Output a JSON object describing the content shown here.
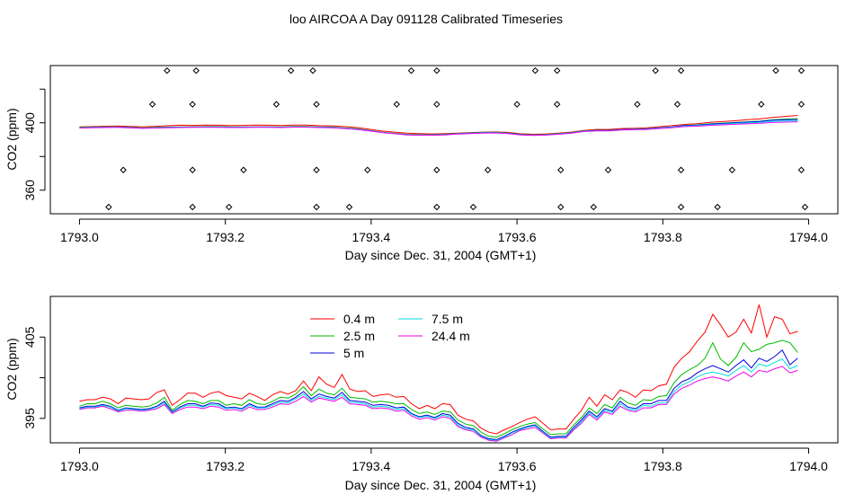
{
  "figure": {
    "title": "loo AIRCOA A  Day 091128  Calibrated Timeseries"
  },
  "chart_data": [
    {
      "type": "line",
      "xlabel": "Day since Dec. 31, 2004 (GMT+1)",
      "ylabel": "CO2 (ppm)",
      "xlim": [
        1792.96,
        1794.04
      ],
      "ylim": [
        346,
        434
      ],
      "xticks": [
        1793.0,
        1793.2,
        1793.4,
        1793.6,
        1793.8,
        1794.0
      ],
      "xtick_labels": [
        "1793.0",
        "1793.2",
        "1793.4",
        "1793.6",
        "1793.8",
        "1794.0"
      ],
      "yticks": [
        360,
        380,
        400,
        420
      ],
      "ytick_labels": [
        "360",
        "",
        "400",
        ""
      ],
      "colors": [
        "#ff0000",
        "#00cc00",
        "#0000ff",
        "#00e5e5",
        "#ff00ff"
      ],
      "series": [
        {
          "values": [
            397.6,
            397.8,
            398.0,
            398.1,
            397.9,
            397.6,
            397.9,
            398.3,
            398.6,
            398.5,
            398.7,
            398.6,
            398.4,
            398.5,
            398.7,
            398.6,
            398.4,
            398.7,
            398.7,
            398.3,
            398.2,
            397.8,
            397.2,
            396.2,
            395.1,
            394.5,
            393.9,
            393.6,
            393.4,
            393.6,
            393.9,
            394.2,
            394.5,
            394.6,
            394.3,
            393.5,
            393.2,
            393.4,
            393.9,
            394.5,
            395.5,
            396.1,
            396.1,
            396.6,
            396.7,
            397.0,
            397.7,
            398.3,
            399.0,
            399.5,
            400.3,
            400.7,
            401.2,
            401.9,
            402.3,
            403.2,
            403.8,
            404.4
          ]
        },
        {
          "values": [
            397.3,
            397.5,
            397.6,
            397.7,
            397.4,
            397.1,
            397.3,
            397.5,
            397.6,
            397.7,
            397.8,
            397.8,
            397.6,
            397.6,
            397.6,
            397.7,
            397.6,
            397.9,
            397.9,
            397.6,
            397.5,
            397.0,
            396.5,
            395.5,
            394.5,
            393.8,
            393.2,
            393.0,
            393.0,
            393.2,
            393.7,
            394.0,
            394.3,
            394.4,
            394.0,
            393.2,
            392.9,
            393.1,
            393.6,
            394.2,
            395.2,
            395.6,
            395.6,
            396.1,
            396.3,
            396.5,
            397.1,
            397.6,
            398.5,
            398.8,
            399.4,
            399.8,
            400.2,
            400.6,
            401.0,
            401.8,
            402.2,
            402.5
          ]
        },
        {
          "values": [
            397.1,
            397.3,
            397.4,
            397.5,
            397.2,
            396.9,
            397.1,
            397.3,
            397.4,
            397.5,
            397.5,
            397.5,
            397.4,
            397.4,
            397.5,
            397.5,
            397.4,
            397.6,
            397.6,
            397.4,
            397.3,
            396.8,
            396.3,
            395.4,
            394.3,
            393.6,
            393.0,
            392.8,
            392.8,
            393.0,
            393.5,
            393.8,
            394.1,
            394.2,
            393.8,
            393.0,
            392.7,
            392.9,
            393.4,
            394.0,
            395.0,
            395.5,
            395.5,
            396.0,
            396.2,
            396.4,
            397.0,
            397.5,
            398.3,
            398.6,
            399.2,
            399.6,
            400.0,
            400.4,
            400.8,
            401.5,
            401.8,
            402.0
          ]
        },
        {
          "values": [
            397.0,
            397.2,
            397.3,
            397.4,
            397.1,
            396.8,
            397.0,
            397.2,
            397.3,
            397.4,
            397.4,
            397.4,
            397.3,
            397.3,
            397.4,
            397.4,
            397.3,
            397.5,
            397.5,
            397.3,
            397.2,
            396.7,
            396.2,
            395.3,
            394.3,
            393.6,
            392.9,
            392.7,
            392.7,
            392.9,
            393.4,
            393.7,
            394.0,
            394.1,
            393.7,
            392.9,
            392.6,
            392.8,
            393.3,
            393.9,
            394.9,
            395.3,
            395.3,
            395.8,
            396.0,
            396.2,
            396.8,
            397.3,
            398.0,
            398.3,
            398.8,
            399.2,
            399.6,
            399.9,
            400.2,
            400.8,
            401.0,
            401.2
          ]
        },
        {
          "values": [
            396.9,
            397.1,
            397.2,
            397.3,
            397.0,
            396.7,
            396.9,
            397.1,
            397.2,
            397.3,
            397.3,
            397.3,
            397.2,
            397.2,
            397.3,
            397.3,
            397.2,
            397.4,
            397.4,
            397.2,
            397.1,
            396.6,
            396.1,
            395.2,
            394.2,
            393.5,
            392.8,
            392.6,
            392.6,
            392.8,
            393.3,
            393.6,
            393.9,
            394.0,
            393.6,
            392.8,
            392.5,
            392.7,
            393.2,
            393.8,
            394.8,
            395.2,
            395.2,
            395.7,
            395.9,
            396.1,
            396.6,
            397.1,
            397.8,
            398.0,
            398.5,
            398.8,
            399.1,
            399.4,
            399.7,
            400.2,
            400.4,
            400.6
          ]
        }
      ],
      "points": [
        {
          "x": 1793.12,
          "y": 431
        },
        {
          "x": 1793.16,
          "y": 431
        },
        {
          "x": 1793.29,
          "y": 431
        },
        {
          "x": 1793.32,
          "y": 431
        },
        {
          "x": 1793.455,
          "y": 431
        },
        {
          "x": 1793.49,
          "y": 431
        },
        {
          "x": 1793.625,
          "y": 431
        },
        {
          "x": 1793.655,
          "y": 431
        },
        {
          "x": 1793.79,
          "y": 431
        },
        {
          "x": 1793.825,
          "y": 431
        },
        {
          "x": 1793.955,
          "y": 431
        },
        {
          "x": 1793.99,
          "y": 431
        },
        {
          "x": 1793.1,
          "y": 411
        },
        {
          "x": 1793.155,
          "y": 411
        },
        {
          "x": 1793.27,
          "y": 411
        },
        {
          "x": 1793.325,
          "y": 411
        },
        {
          "x": 1793.435,
          "y": 411
        },
        {
          "x": 1793.49,
          "y": 411
        },
        {
          "x": 1793.6,
          "y": 411
        },
        {
          "x": 1793.655,
          "y": 411
        },
        {
          "x": 1793.765,
          "y": 411
        },
        {
          "x": 1793.82,
          "y": 411
        },
        {
          "x": 1793.935,
          "y": 411
        },
        {
          "x": 1793.99,
          "y": 411
        },
        {
          "x": 1793.06,
          "y": 372
        },
        {
          "x": 1793.155,
          "y": 372
        },
        {
          "x": 1793.225,
          "y": 372
        },
        {
          "x": 1793.325,
          "y": 372
        },
        {
          "x": 1793.395,
          "y": 372
        },
        {
          "x": 1793.49,
          "y": 372
        },
        {
          "x": 1793.56,
          "y": 372
        },
        {
          "x": 1793.66,
          "y": 372
        },
        {
          "x": 1793.725,
          "y": 372
        },
        {
          "x": 1793.825,
          "y": 372
        },
        {
          "x": 1793.895,
          "y": 372
        },
        {
          "x": 1793.99,
          "y": 372
        },
        {
          "x": 1793.04,
          "y": 350
        },
        {
          "x": 1793.155,
          "y": 350
        },
        {
          "x": 1793.205,
          "y": 350
        },
        {
          "x": 1793.325,
          "y": 350
        },
        {
          "x": 1793.37,
          "y": 350
        },
        {
          "x": 1793.49,
          "y": 350
        },
        {
          "x": 1793.54,
          "y": 350
        },
        {
          "x": 1793.66,
          "y": 350
        },
        {
          "x": 1793.705,
          "y": 350
        },
        {
          "x": 1793.825,
          "y": 350
        },
        {
          "x": 1793.875,
          "y": 350
        },
        {
          "x": 1793.995,
          "y": 350
        }
      ]
    },
    {
      "type": "line",
      "xlabel": "Day since Dec. 31, 2004 (GMT+1)",
      "ylabel": "CO2 (ppm)",
      "xlim": [
        1792.96,
        1794.04
      ],
      "ylim": [
        392.0,
        410.0
      ],
      "xticks": [
        1793.0,
        1793.2,
        1793.4,
        1793.6,
        1793.8,
        1794.0
      ],
      "xtick_labels": [
        "1793.0",
        "1793.2",
        "1793.4",
        "1793.6",
        "1793.8",
        "1794.0"
      ],
      "yticks": [
        395,
        400,
        405
      ],
      "ytick_labels": [
        "395",
        "",
        "405"
      ],
      "legend": {
        "position": "top-center"
      },
      "series": [
        {
          "name": "0.4 m",
          "color": "#ff0000",
          "values": [
            397.1,
            397.3,
            397.3,
            397.6,
            397.4,
            396.8,
            397.5,
            397.4,
            397.3,
            397.4,
            398.2,
            398.5,
            396.6,
            397.3,
            398.1,
            398.1,
            397.6,
            398.1,
            398.3,
            397.8,
            397.6,
            397.4,
            398.1,
            397.7,
            397.2,
            397.9,
            398.3,
            398.0,
            398.4,
            399.6,
            398.4,
            400.1,
            399.2,
            398.8,
            400.4,
            398.6,
            398.3,
            398.4,
            397.7,
            397.9,
            398.0,
            397.6,
            397.7,
            396.8,
            396.2,
            396.6,
            396.2,
            396.8,
            396.7,
            395.4,
            394.9,
            394.7,
            393.8,
            393.3,
            393.1,
            393.6,
            394.0,
            394.5,
            394.9,
            395.2,
            394.4,
            393.6,
            393.7,
            393.7,
            394.9,
            396.0,
            397.6,
            396.5,
            397.9,
            397.3,
            398.5,
            398.2,
            397.6,
            398.5,
            398.4,
            399.0,
            399.2,
            401.3,
            402.4,
            403.2,
            404.5,
            405.6,
            407.8,
            406.5,
            405.0,
            405.6,
            407.2,
            405.5,
            409.0,
            405.0,
            407.5,
            407.2,
            405.4,
            405.7
          ]
        },
        {
          "name": "2.5 m",
          "color": "#00bb00",
          "values": [
            396.5,
            396.8,
            396.8,
            397.1,
            396.8,
            396.3,
            396.6,
            396.5,
            396.4,
            396.5,
            396.9,
            397.6,
            396.0,
            396.7,
            397.2,
            397.1,
            396.8,
            397.2,
            397.2,
            396.6,
            396.8,
            396.6,
            397.3,
            396.8,
            396.7,
            397.1,
            397.6,
            397.5,
            398.0,
            398.9,
            397.8,
            398.6,
            398.1,
            397.9,
            398.7,
            397.6,
            397.5,
            397.4,
            397.0,
            397.1,
            397.0,
            396.8,
            396.8,
            396.1,
            395.6,
            395.8,
            395.5,
            395.9,
            395.8,
            394.8,
            394.3,
            394.1,
            393.3,
            392.8,
            392.7,
            393.1,
            393.6,
            394.0,
            394.3,
            394.5,
            393.7,
            393.0,
            393.1,
            393.1,
            394.2,
            395.1,
            396.3,
            395.6,
            396.7,
            396.3,
            397.6,
            396.9,
            396.6,
            397.3,
            397.2,
            397.7,
            397.8,
            399.4,
            400.4,
            401.0,
            401.5,
            402.4,
            404.3,
            402.3,
            401.5,
            402.5,
            404.3,
            403.2,
            403.5,
            404.1,
            404.3,
            404.6,
            404.3,
            403.1
          ]
        },
        {
          "name": "5 m",
          "color": "#0000dd",
          "values": [
            396.3,
            396.5,
            396.5,
            396.7,
            396.5,
            396.0,
            396.3,
            396.2,
            396.1,
            396.2,
            396.5,
            397.1,
            395.8,
            396.4,
            396.8,
            396.8,
            396.5,
            396.9,
            396.8,
            396.3,
            396.4,
            396.2,
            396.8,
            396.4,
            396.4,
            396.8,
            397.2,
            397.1,
            397.6,
            398.3,
            397.4,
            398.0,
            397.7,
            397.5,
            398.2,
            397.2,
            397.1,
            397.0,
            396.6,
            396.7,
            396.6,
            396.3,
            396.4,
            395.6,
            395.2,
            395.4,
            395.1,
            395.6,
            395.4,
            394.4,
            393.9,
            393.7,
            392.9,
            392.5,
            392.4,
            392.8,
            393.3,
            393.7,
            394.0,
            394.2,
            393.4,
            392.7,
            392.8,
            392.8,
            393.9,
            394.8,
            395.9,
            395.2,
            396.2,
            395.9,
            397.1,
            396.4,
            396.2,
            396.8,
            396.8,
            397.2,
            397.2,
            398.7,
            399.5,
            399.9,
            400.6,
            401.1,
            401.5,
            401.1,
            400.7,
            401.5,
            402.2,
            401.2,
            402.4,
            402.0,
            402.6,
            403.4,
            401.6,
            402.4
          ]
        },
        {
          "name": "7.5 m",
          "color": "#00dddd",
          "values": [
            396.2,
            396.4,
            396.4,
            396.6,
            396.4,
            395.9,
            396.2,
            396.1,
            396.0,
            396.1,
            396.4,
            396.9,
            395.7,
            396.3,
            396.6,
            396.6,
            396.4,
            396.7,
            396.6,
            396.2,
            396.3,
            396.1,
            396.6,
            396.3,
            396.3,
            396.6,
            397.0,
            396.9,
            397.4,
            398.0,
            397.2,
            397.7,
            397.5,
            397.3,
            397.9,
            397.0,
            396.9,
            396.8,
            396.4,
            396.5,
            396.4,
            396.1,
            396.2,
            395.5,
            395.1,
            395.3,
            395.0,
            395.4,
            395.2,
            394.2,
            393.7,
            393.6,
            392.8,
            392.4,
            392.3,
            392.7,
            393.2,
            393.6,
            393.9,
            394.1,
            393.3,
            392.6,
            392.7,
            392.7,
            393.7,
            394.6,
            395.7,
            395.0,
            396.0,
            395.7,
            396.8,
            396.2,
            396.0,
            396.6,
            396.5,
            396.9,
            396.9,
            398.3,
            399.1,
            399.5,
            400.1,
            400.5,
            400.7,
            400.5,
            400.2,
            400.9,
            401.5,
            400.7,
            401.7,
            401.4,
            401.9,
            402.3,
            401.1,
            401.5
          ]
        },
        {
          "name": "24.4 m",
          "color": "#ee00ee",
          "values": [
            396.1,
            396.3,
            396.3,
            396.5,
            396.2,
            395.8,
            396.0,
            396.0,
            395.9,
            396.0,
            396.2,
            396.7,
            395.6,
            396.1,
            396.4,
            396.4,
            396.2,
            396.5,
            396.4,
            396.0,
            396.1,
            395.9,
            396.4,
            396.1,
            396.1,
            396.4,
            396.8,
            396.7,
            397.1,
            397.7,
            397.0,
            397.5,
            397.3,
            397.1,
            397.6,
            396.8,
            396.7,
            396.6,
            396.2,
            396.3,
            396.2,
            395.9,
            396.0,
            395.3,
            394.9,
            395.1,
            394.8,
            395.2,
            395.0,
            394.0,
            393.6,
            393.4,
            392.7,
            392.3,
            392.2,
            392.6,
            393.0,
            393.5,
            393.7,
            393.9,
            393.2,
            392.5,
            392.6,
            392.6,
            393.6,
            394.4,
            395.5,
            394.8,
            395.8,
            395.5,
            396.5,
            396.0,
            395.8,
            396.3,
            396.3,
            396.7,
            396.7,
            398.0,
            398.7,
            399.1,
            399.6,
            399.9,
            400.1,
            399.9,
            399.6,
            400.2,
            400.7,
            400.1,
            400.9,
            400.7,
            401.1,
            401.4,
            400.6,
            400.9
          ]
        }
      ]
    }
  ]
}
